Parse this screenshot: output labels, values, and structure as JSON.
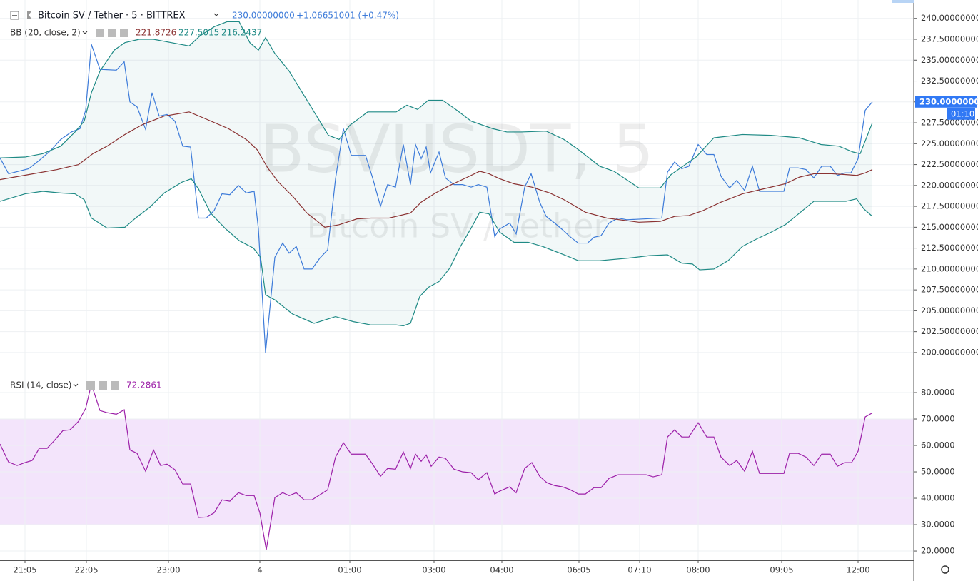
{
  "chart_data": [
    {
      "type": "line",
      "title": "Bitcoin SV / Tether · 5 · BITTREX",
      "price_text": "230.00000000",
      "change_text": "+1.06651001 (+0.47%)",
      "watermark": [
        "BSVUSDT, 5",
        "Bitcoin SV / Tether"
      ],
      "indicator": "BB (20, close, 2)",
      "indicator_values": [
        "221.8726",
        "227.5015",
        "216.2437"
      ],
      "last_label": "230.00000000",
      "countdown": "01:10",
      "xlim": [
        0,
        128
      ],
      "ylim": [
        197.6,
        242.2
      ],
      "yticks": [
        {
          "value": 200,
          "label": "200.00000000"
        },
        {
          "value": 202.5,
          "label": "202.50000000"
        },
        {
          "value": 205,
          "label": "205.00000000"
        },
        {
          "value": 207.5,
          "label": "207.50000000"
        },
        {
          "value": 210,
          "label": "210.00000000"
        },
        {
          "value": 212.5,
          "label": "212.50000000"
        },
        {
          "value": 215,
          "label": "215.00000000"
        },
        {
          "value": 217.5,
          "label": "217.50000000"
        },
        {
          "value": 220,
          "label": "220.00000000"
        },
        {
          "value": 222.5,
          "label": "222.50000000"
        },
        {
          "value": 225,
          "label": "225.00000000"
        },
        {
          "value": 227.5,
          "label": "227.50000000"
        },
        {
          "value": 230,
          "label": "230.00000000"
        },
        {
          "value": 232.5,
          "label": "232.50000000"
        },
        {
          "value": 235,
          "label": "235.00000000"
        },
        {
          "value": 237.5,
          "label": "237.50000000"
        },
        {
          "value": 240,
          "label": "240.00000000"
        }
      ],
      "grid": true,
      "fill_between": [
        2,
        3
      ],
      "fill_color": "rgba(31,138,133,0.06)",
      "series": [
        {
          "color": "#3d7bd9",
          "x": [
            0,
            1.2,
            4,
            5.5,
            7,
            8.5,
            10,
            11.2,
            12,
            12.8,
            14,
            16.3,
            17.4,
            18.2,
            19.2,
            20.4,
            21.3,
            22.3,
            23.4,
            24.5,
            25.6,
            26.7,
            27.8,
            28.9,
            30,
            31.1,
            32.2,
            33.4,
            34.5,
            35.6,
            36.2,
            37.2,
            38.5,
            39.6,
            40.5,
            41.5,
            42.6,
            43.7,
            44.8,
            45.9,
            47,
            48.1,
            49.2,
            51.2,
            52.2,
            53.3,
            54.3,
            55.4,
            56.5,
            57.5,
            58.2,
            59,
            59.7,
            60.3,
            61.5,
            62.4,
            63.6,
            64.8,
            66,
            67,
            68.2,
            69.3,
            70,
            71.4,
            72.3,
            73.5,
            74.4,
            75.6,
            76.5,
            77.7,
            78.8,
            79.8,
            81,
            82.3,
            83.2,
            84.2,
            85.3,
            86.6,
            87.8,
            92.7,
            93.5,
            94.5,
            95.5,
            96.5,
            97.8,
            99,
            100,
            101,
            102.2,
            103.2,
            104.3,
            105.4,
            106.4,
            109.8,
            110.6,
            111.8,
            112.9,
            114,
            115.1,
            116.3,
            117.3,
            118.3,
            119.2,
            120.2,
            121.2,
            122.2
          ],
          "values": [
            223.3,
            221.4,
            222.0,
            223.0,
            224.1,
            225.5,
            226.4,
            226.8,
            229.0,
            236.9,
            233.9,
            233.8,
            234.8,
            230.0,
            229.4,
            226.7,
            231.1,
            228.3,
            228.5,
            227.7,
            224.7,
            224.6,
            216.1,
            216.1,
            217.0,
            219.0,
            218.9,
            220.0,
            219.1,
            219.3,
            214.8,
            200.0,
            211.4,
            213.1,
            211.9,
            212.7,
            210.0,
            210.0,
            211.3,
            212.3,
            220.8,
            226.8,
            223.6,
            223.6,
            220.9,
            217.5,
            220.1,
            219.8,
            224.9,
            220.1,
            224.9,
            223.2,
            224.6,
            221.5,
            224.0,
            220.9,
            220.1,
            220.1,
            219.8,
            220.1,
            219.8,
            213.9,
            214.8,
            215.5,
            214.2,
            219.8,
            221.4,
            218.0,
            216.3,
            215.5,
            214.7,
            213.9,
            213.1,
            213.1,
            213.8,
            214.0,
            215.5,
            216.1,
            215.9,
            216.1,
            221.6,
            222.8,
            222.0,
            222.3,
            224.9,
            223.7,
            223.7,
            221.1,
            219.7,
            220.6,
            219.4,
            222.3,
            219.3,
            219.3,
            222.1,
            222.1,
            221.9,
            220.9,
            222.3,
            222.3,
            221.2,
            221.5,
            221.5,
            223.2,
            229.0,
            230.0
          ]
        },
        {
          "color": "#8b3333",
          "x": [
            0,
            4,
            8,
            11,
            13,
            15,
            17.5,
            20,
            23,
            26.5,
            29,
            32,
            34.5,
            36,
            37.5,
            39,
            41,
            43,
            45.5,
            47.5,
            50,
            52,
            54.5,
            57.5,
            59,
            61,
            63,
            65.5,
            67.2,
            68.5,
            70,
            72,
            74.5,
            77,
            79,
            82,
            85,
            89.5,
            92.5,
            94.5,
            96.5,
            98.5,
            101,
            104,
            107,
            110,
            112,
            114,
            116.5,
            118.5,
            120,
            121.2,
            122.2
          ],
          "values": [
            220.7,
            221.3,
            221.9,
            222.5,
            223.8,
            224.7,
            226.1,
            227.3,
            228.3,
            228.8,
            227.9,
            226.8,
            225.5,
            224.3,
            222.1,
            220.4,
            218.7,
            216.7,
            215.0,
            215.3,
            216.0,
            216.1,
            216.1,
            216.7,
            218.0,
            219.1,
            220.0,
            221.0,
            221.7,
            221.4,
            220.8,
            220.2,
            219.8,
            219.1,
            218.3,
            216.8,
            216.1,
            215.6,
            215.7,
            216.3,
            216.4,
            217.0,
            218.0,
            219.0,
            219.6,
            220.2,
            221.0,
            221.4,
            221.4,
            221.3,
            221.2,
            221.5,
            221.9
          ]
        },
        {
          "color": "#1f8a85",
          "x": [
            0,
            3.5,
            6,
            8.5,
            10.5,
            11.8,
            12.8,
            14,
            16,
            17.5,
            19.5,
            21.5,
            24,
            26.5,
            28,
            30,
            31.8,
            33.5,
            35,
            36.2,
            37.2,
            38.5,
            40.5,
            43,
            44.5,
            46,
            47.5,
            49,
            51.5,
            53.5,
            55.5,
            57,
            58.5,
            60,
            62,
            64,
            66,
            69,
            71,
            73,
            76.5,
            79,
            81,
            84,
            86,
            89.5,
            92.5,
            94,
            96,
            97.5,
            100,
            104,
            108,
            112,
            115,
            117.5,
            119.5,
            120.5,
            122.2
          ],
          "values": [
            223.3,
            223.4,
            223.8,
            224.7,
            226.4,
            227.7,
            231.1,
            233.7,
            236.2,
            237.1,
            237.5,
            237.5,
            237.1,
            236.7,
            237.9,
            239.0,
            239.6,
            239.6,
            237.1,
            236.2,
            237.7,
            235.8,
            233.7,
            230.2,
            228.1,
            226.0,
            225.5,
            227.2,
            228.8,
            228.8,
            228.8,
            229.6,
            229.1,
            230.2,
            230.2,
            229.0,
            227.7,
            226.8,
            226.4,
            226.4,
            226.5,
            225.5,
            224.3,
            222.3,
            221.7,
            219.7,
            219.7,
            221.3,
            222.5,
            223.4,
            225.7,
            226.1,
            226.0,
            225.7,
            224.9,
            224.7,
            224.0,
            223.8,
            227.5
          ]
        },
        {
          "color": "#1f8a85",
          "x": [
            0,
            3.5,
            6,
            8.5,
            10.5,
            11.8,
            12.8,
            15,
            17.5,
            19,
            21,
            23,
            25.5,
            26.8,
            27.8,
            29.5,
            31.5,
            33.5,
            35.5,
            36.5,
            37.2,
            38.5,
            41,
            44,
            47,
            49.5,
            52,
            55.5,
            56.5,
            57.5,
            58.8,
            60,
            61.5,
            63,
            64.5,
            66,
            67.2,
            68.5,
            70,
            72,
            74,
            76,
            79,
            81,
            84,
            88,
            91,
            93.5,
            95.5,
            97,
            98,
            100,
            102,
            104,
            106,
            108,
            110,
            112,
            114,
            116,
            118.5,
            120,
            121,
            122.2
          ],
          "values": [
            218.1,
            219.0,
            219.3,
            219.1,
            219.0,
            218.3,
            216.1,
            214.9,
            215.0,
            216.1,
            217.4,
            219.1,
            220.4,
            220.8,
            219.6,
            216.7,
            214.9,
            213.4,
            212.5,
            211.4,
            206.9,
            206.3,
            204.6,
            203.5,
            204.3,
            203.7,
            203.3,
            203.3,
            203.2,
            203.5,
            206.7,
            207.8,
            208.5,
            210.1,
            212.7,
            214.9,
            216.8,
            216.6,
            214.4,
            213.2,
            213.2,
            212.7,
            211.7,
            211.0,
            211.0,
            211.3,
            211.6,
            211.7,
            210.7,
            210.6,
            209.9,
            210.0,
            211.0,
            212.7,
            213.6,
            214.4,
            215.3,
            216.7,
            218.1,
            218.1,
            218.1,
            218.4,
            217.2,
            216.3
          ]
        }
      ]
    },
    {
      "type": "line",
      "indicator": "RSI (14, close)",
      "indicator_values": [
        "72.2861"
      ],
      "xlim": [
        0,
        128
      ],
      "xticks": [
        {
          "value": 3.5,
          "label": "21:05"
        },
        {
          "value": 12.1,
          "label": "22:05"
        },
        {
          "value": 23.6,
          "label": "23:00"
        },
        {
          "value": 36.4,
          "label": "4"
        },
        {
          "value": 49.0,
          "label": "01:00"
        },
        {
          "value": 60.8,
          "label": "03:00"
        },
        {
          "value": 70.3,
          "label": "04:00"
        },
        {
          "value": 81.1,
          "label": "06:05"
        },
        {
          "value": 89.6,
          "label": "07:10"
        },
        {
          "value": 97.8,
          "label": "08:00"
        },
        {
          "value": 109.5,
          "label": "09:05"
        },
        {
          "value": 120.2,
          "label": "12:00"
        }
      ],
      "ylim": [
        16.5,
        87.3
      ],
      "yticks": [
        {
          "value": 20,
          "label": "20.0000"
        },
        {
          "value": 30,
          "label": "30.0000"
        },
        {
          "value": 40,
          "label": "40.0000"
        },
        {
          "value": 50,
          "label": "50.0000"
        },
        {
          "value": 60,
          "label": "60.0000"
        },
        {
          "value": 70,
          "label": "70.0000"
        },
        {
          "value": 80,
          "label": "80.0000"
        }
      ],
      "grid": true,
      "band": [
        30,
        70
      ],
      "band_color": "#f3e4fb",
      "series": [
        {
          "color": "#9c1fa8",
          "x": [
            0,
            1.2,
            2.4,
            3.5,
            4.5,
            5.5,
            6.6,
            7.6,
            8.8,
            9.8,
            11,
            12,
            12.8,
            14,
            15,
            16.3,
            17.4,
            18.2,
            19.2,
            20.4,
            21.5,
            22.5,
            23.4,
            24.5,
            25.6,
            26.7,
            27.8,
            29,
            30,
            31.1,
            32.2,
            33.4,
            34.5,
            35.6,
            36.4,
            37.3,
            38.5,
            39.6,
            40.5,
            41.5,
            42.6,
            43.7,
            44.8,
            45.9,
            47,
            48.1,
            49.2,
            51.2,
            52.2,
            53.3,
            54.3,
            55.4,
            56.5,
            57.5,
            58.2,
            59,
            59.7,
            60.4,
            61.5,
            62.4,
            63.6,
            64.8,
            66,
            67,
            68.2,
            69.3,
            70,
            71.4,
            72.3,
            73.5,
            74.5,
            75.6,
            76.6,
            77.7,
            78.8,
            79.9,
            81,
            82,
            83.2,
            84.2,
            85.3,
            86.6,
            90.5,
            91.5,
            92.7,
            93.5,
            94.5,
            95.5,
            96.5,
            97.8,
            99,
            100,
            101,
            102.2,
            103.2,
            104.3,
            105.4,
            106.4,
            109.8,
            110.6,
            111.8,
            112.9,
            114,
            115.1,
            116.3,
            117.3,
            118.3,
            119.3,
            120.2,
            121.2,
            122.2
          ],
          "values": [
            60.5,
            53.7,
            52.4,
            53.5,
            54.3,
            58.9,
            58.9,
            61.8,
            65.6,
            65.9,
            69.1,
            74.0,
            83.2,
            73.2,
            72.4,
            71.8,
            73.5,
            58.3,
            57.0,
            50.2,
            58.3,
            52.4,
            52.9,
            50.8,
            45.4,
            45.4,
            32.7,
            32.9,
            34.5,
            39.4,
            38.9,
            42.1,
            41.0,
            41.0,
            34.5,
            20.5,
            40.2,
            42.1,
            41.0,
            42.1,
            39.4,
            39.4,
            41.3,
            43.2,
            55.6,
            61.0,
            56.7,
            56.7,
            52.9,
            48.3,
            51.3,
            51.0,
            57.5,
            51.3,
            56.7,
            54.0,
            56.4,
            52.1,
            55.6,
            55.1,
            51.0,
            50.0,
            49.7,
            47.0,
            49.7,
            41.6,
            42.7,
            44.3,
            42.1,
            51.3,
            53.5,
            48.3,
            45.9,
            44.8,
            44.3,
            43.2,
            41.6,
            41.6,
            44.0,
            44.0,
            47.5,
            48.9,
            48.9,
            48.1,
            48.9,
            63.2,
            65.9,
            63.2,
            63.2,
            68.6,
            63.2,
            63.2,
            55.6,
            52.4,
            54.3,
            50.2,
            57.8,
            49.4,
            49.4,
            57.0,
            57.0,
            55.6,
            52.4,
            56.7,
            56.7,
            52.1,
            53.5,
            53.5,
            57.8,
            70.8,
            72.3
          ]
        }
      ]
    }
  ]
}
